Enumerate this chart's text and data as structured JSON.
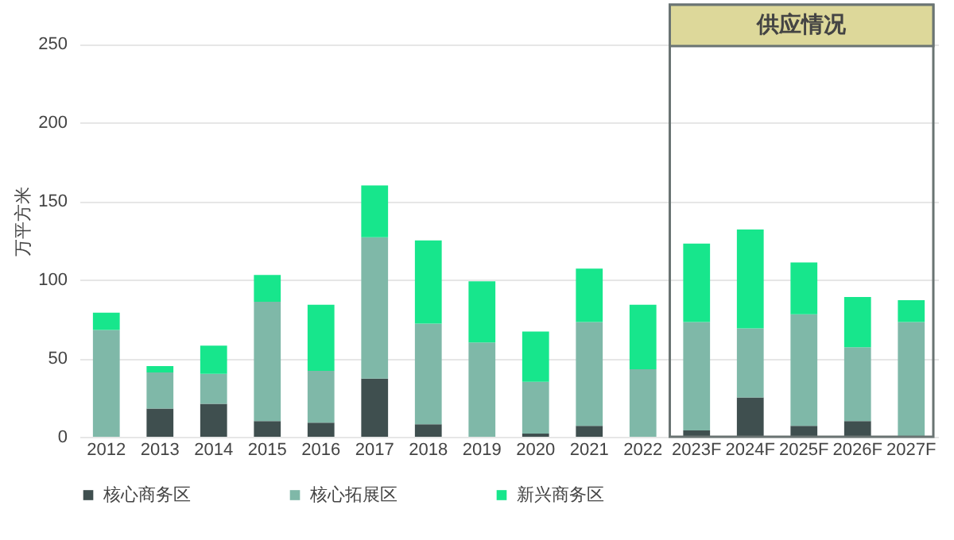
{
  "chart_data": {
    "type": "bar",
    "stacked": true,
    "ylabel": "万平方米",
    "categories": [
      "2012",
      "2013",
      "2014",
      "2015",
      "2016",
      "2017",
      "2018",
      "2019",
      "2020",
      "2021",
      "2022",
      "2023F",
      "2024F",
      "2025F",
      "2026F",
      "2027F"
    ],
    "series": [
      {
        "name": "核心商务区",
        "color": "#3f4f4f",
        "values": [
          0,
          18,
          21,
          10,
          9,
          37,
          8,
          0,
          2,
          7,
          0,
          4,
          25,
          7,
          10,
          0
        ]
      },
      {
        "name": "核心拓展区",
        "color": "#7fb8a8",
        "values": [
          68,
          23,
          19,
          76,
          33,
          90,
          64,
          60,
          33,
          66,
          43,
          69,
          44,
          71,
          47,
          73
        ]
      },
      {
        "name": "新兴商务区",
        "color": "#17e68c",
        "values": [
          11,
          4,
          18,
          17,
          42,
          33,
          53,
          39,
          32,
          34,
          41,
          50,
          63,
          33,
          32,
          14
        ]
      }
    ],
    "ylim": [
      0,
      275
    ],
    "yticks": [
      0,
      50,
      100,
      150,
      200,
      250
    ],
    "grid": "y",
    "legend": "bottom",
    "bands": [
      {
        "axis": "x",
        "from": "2023F",
        "to": "2027F",
        "label": "供应情况",
        "color": "#ddd89a"
      }
    ]
  }
}
